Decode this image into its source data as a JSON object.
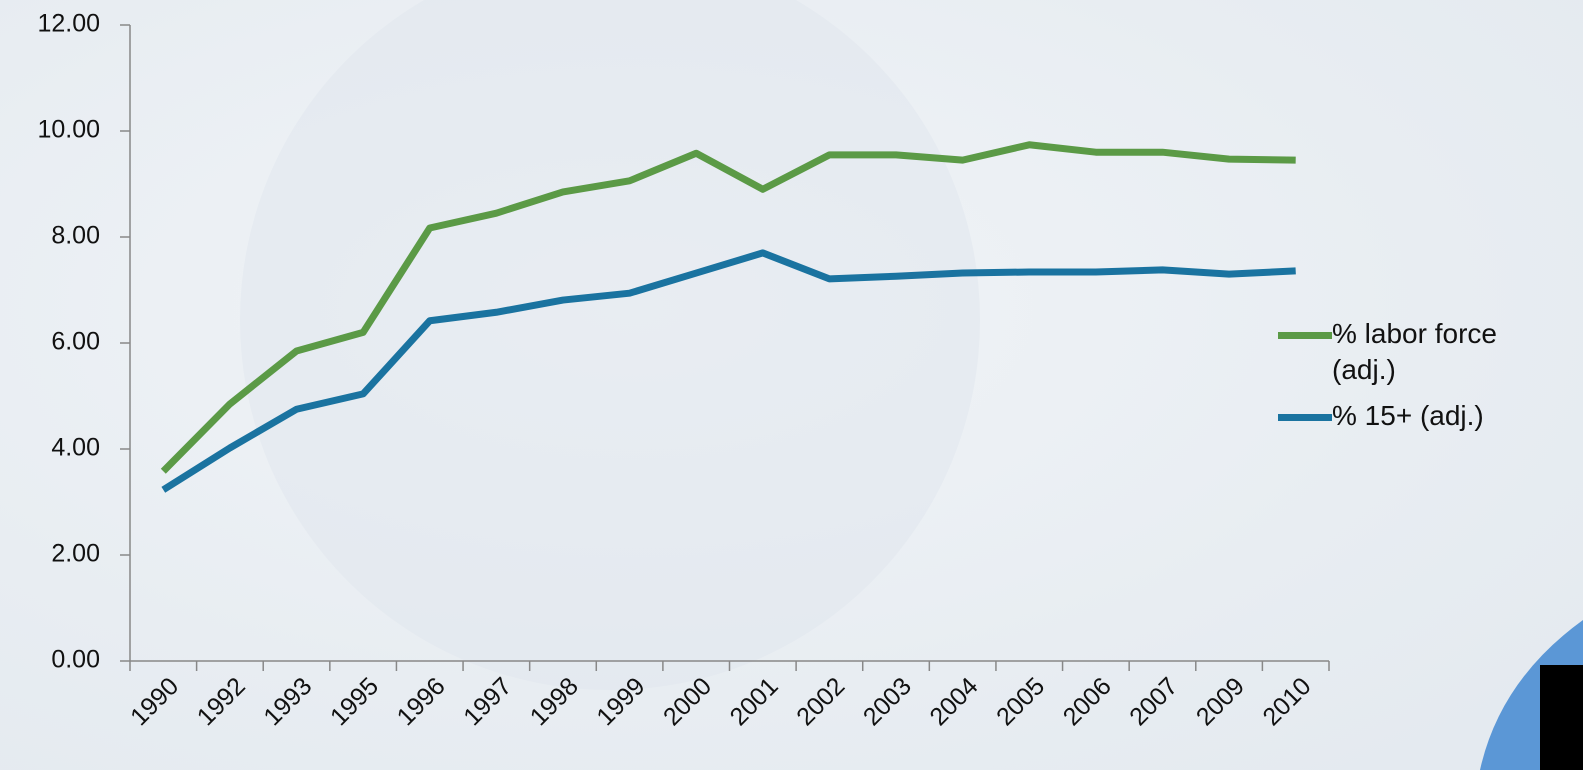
{
  "chart_data": {
    "type": "line",
    "categories": [
      "1990",
      "1992",
      "1993",
      "1995",
      "1996",
      "1997",
      "1998",
      "1999",
      "2000",
      "2001",
      "2002",
      "2003",
      "2004",
      "2005",
      "2006",
      "2007",
      "2009",
      "2010"
    ],
    "series": [
      {
        "name": "% labor force (adj.)",
        "color": "#5b9a46",
        "values": [
          3.58,
          4.85,
          5.85,
          6.2,
          8.17,
          8.45,
          8.85,
          9.06,
          9.58,
          8.9,
          9.55,
          9.55,
          9.45,
          9.74,
          9.6,
          9.6,
          9.47,
          9.45
        ]
      },
      {
        "name": "% 15+ (adj.)",
        "color": "#1a73a0",
        "values": [
          3.23,
          4.02,
          4.75,
          5.04,
          6.42,
          6.58,
          6.81,
          6.94,
          7.32,
          7.7,
          7.21,
          7.26,
          7.32,
          7.34,
          7.34,
          7.38,
          7.3,
          7.36
        ]
      }
    ],
    "ylim": [
      0,
      12
    ],
    "yticks": [
      {
        "value": 0,
        "label": "0.00"
      },
      {
        "value": 2,
        "label": "2.00"
      },
      {
        "value": 4,
        "label": "4.00"
      },
      {
        "value": 6,
        "label": "6.00"
      },
      {
        "value": 8,
        "label": "8.00"
      },
      {
        "value": 10,
        "label": "10.00"
      },
      {
        "value": 12,
        "label": "12.00"
      }
    ],
    "legend": "right"
  }
}
